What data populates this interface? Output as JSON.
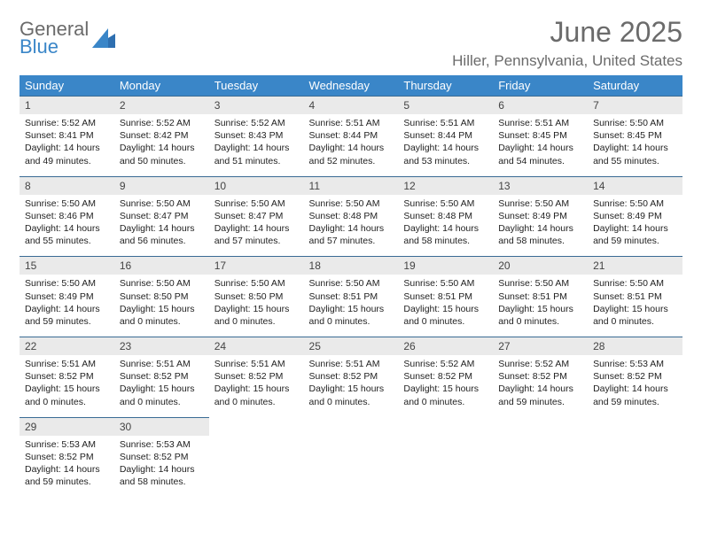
{
  "brand": {
    "word1": "General",
    "word2": "Blue"
  },
  "title": "June 2025",
  "location": "Hiller, Pennsylvania, United States",
  "colors": {
    "header_bg": "#3a86c8",
    "header_text": "#ffffff",
    "daynum_bg": "#eaeaea",
    "rule": "#3a6b94",
    "muted_text": "#6b6b6b",
    "body_text": "#222222",
    "page_bg": "#ffffff"
  },
  "typography": {
    "title_fontsize": 32,
    "location_fontsize": 17,
    "dayheader_fontsize": 13,
    "daynum_fontsize": 12,
    "body_fontsize": 10.5,
    "font_family": "Arial"
  },
  "layout": {
    "columns": 7,
    "rows": 5,
    "first_weekday": "Sunday"
  },
  "day_names": [
    "Sunday",
    "Monday",
    "Tuesday",
    "Wednesday",
    "Thursday",
    "Friday",
    "Saturday"
  ],
  "days": [
    {
      "n": 1,
      "sr": "5:52 AM",
      "ss": "8:41 PM",
      "dl": "14 hours and 49 minutes."
    },
    {
      "n": 2,
      "sr": "5:52 AM",
      "ss": "8:42 PM",
      "dl": "14 hours and 50 minutes."
    },
    {
      "n": 3,
      "sr": "5:52 AM",
      "ss": "8:43 PM",
      "dl": "14 hours and 51 minutes."
    },
    {
      "n": 4,
      "sr": "5:51 AM",
      "ss": "8:44 PM",
      "dl": "14 hours and 52 minutes."
    },
    {
      "n": 5,
      "sr": "5:51 AM",
      "ss": "8:44 PM",
      "dl": "14 hours and 53 minutes."
    },
    {
      "n": 6,
      "sr": "5:51 AM",
      "ss": "8:45 PM",
      "dl": "14 hours and 54 minutes."
    },
    {
      "n": 7,
      "sr": "5:50 AM",
      "ss": "8:45 PM",
      "dl": "14 hours and 55 minutes."
    },
    {
      "n": 8,
      "sr": "5:50 AM",
      "ss": "8:46 PM",
      "dl": "14 hours and 55 minutes."
    },
    {
      "n": 9,
      "sr": "5:50 AM",
      "ss": "8:47 PM",
      "dl": "14 hours and 56 minutes."
    },
    {
      "n": 10,
      "sr": "5:50 AM",
      "ss": "8:47 PM",
      "dl": "14 hours and 57 minutes."
    },
    {
      "n": 11,
      "sr": "5:50 AM",
      "ss": "8:48 PM",
      "dl": "14 hours and 57 minutes."
    },
    {
      "n": 12,
      "sr": "5:50 AM",
      "ss": "8:48 PM",
      "dl": "14 hours and 58 minutes."
    },
    {
      "n": 13,
      "sr": "5:50 AM",
      "ss": "8:49 PM",
      "dl": "14 hours and 58 minutes."
    },
    {
      "n": 14,
      "sr": "5:50 AM",
      "ss": "8:49 PM",
      "dl": "14 hours and 59 minutes."
    },
    {
      "n": 15,
      "sr": "5:50 AM",
      "ss": "8:49 PM",
      "dl": "14 hours and 59 minutes."
    },
    {
      "n": 16,
      "sr": "5:50 AM",
      "ss": "8:50 PM",
      "dl": "15 hours and 0 minutes."
    },
    {
      "n": 17,
      "sr": "5:50 AM",
      "ss": "8:50 PM",
      "dl": "15 hours and 0 minutes."
    },
    {
      "n": 18,
      "sr": "5:50 AM",
      "ss": "8:51 PM",
      "dl": "15 hours and 0 minutes."
    },
    {
      "n": 19,
      "sr": "5:50 AM",
      "ss": "8:51 PM",
      "dl": "15 hours and 0 minutes."
    },
    {
      "n": 20,
      "sr": "5:50 AM",
      "ss": "8:51 PM",
      "dl": "15 hours and 0 minutes."
    },
    {
      "n": 21,
      "sr": "5:50 AM",
      "ss": "8:51 PM",
      "dl": "15 hours and 0 minutes."
    },
    {
      "n": 22,
      "sr": "5:51 AM",
      "ss": "8:52 PM",
      "dl": "15 hours and 0 minutes."
    },
    {
      "n": 23,
      "sr": "5:51 AM",
      "ss": "8:52 PM",
      "dl": "15 hours and 0 minutes."
    },
    {
      "n": 24,
      "sr": "5:51 AM",
      "ss": "8:52 PM",
      "dl": "15 hours and 0 minutes."
    },
    {
      "n": 25,
      "sr": "5:51 AM",
      "ss": "8:52 PM",
      "dl": "15 hours and 0 minutes."
    },
    {
      "n": 26,
      "sr": "5:52 AM",
      "ss": "8:52 PM",
      "dl": "15 hours and 0 minutes."
    },
    {
      "n": 27,
      "sr": "5:52 AM",
      "ss": "8:52 PM",
      "dl": "14 hours and 59 minutes."
    },
    {
      "n": 28,
      "sr": "5:53 AM",
      "ss": "8:52 PM",
      "dl": "14 hours and 59 minutes."
    },
    {
      "n": 29,
      "sr": "5:53 AM",
      "ss": "8:52 PM",
      "dl": "14 hours and 59 minutes."
    },
    {
      "n": 30,
      "sr": "5:53 AM",
      "ss": "8:52 PM",
      "dl": "14 hours and 58 minutes."
    }
  ],
  "labels": {
    "sunrise": "Sunrise:",
    "sunset": "Sunset:",
    "daylight": "Daylight:"
  }
}
